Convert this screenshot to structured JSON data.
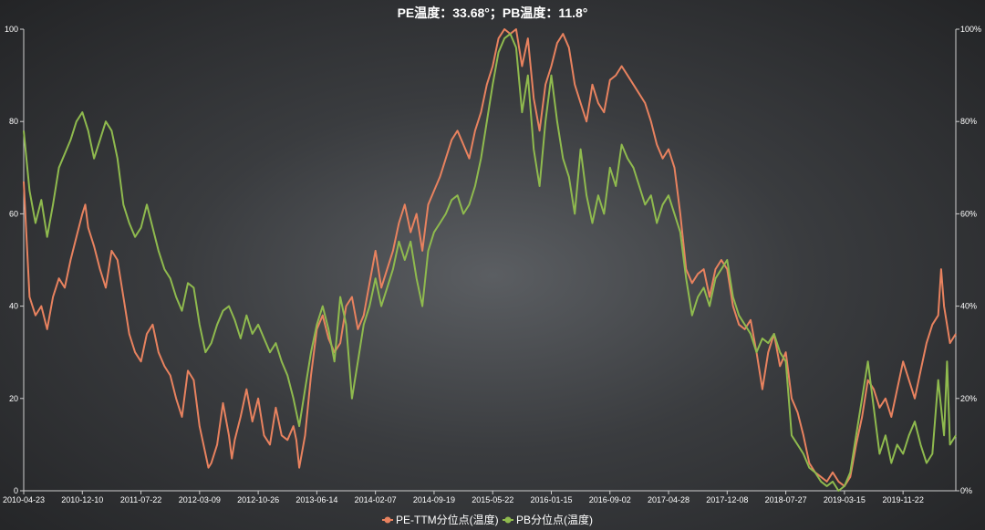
{
  "chart_data": {
    "type": "line",
    "title": "PE温度：33.68°；PB温度：11.8°",
    "x_ticks": [
      "2010-04-23",
      "2010-12-10",
      "2011-07-22",
      "2012-03-09",
      "2012-10-26",
      "2013-06-14",
      "2014-02-07",
      "2014-09-19",
      "2015-05-22",
      "2016-01-15",
      "2016-09-02",
      "2017-04-28",
      "2017-12-08",
      "2018-07-27",
      "2019-03-15",
      "2019-11-22"
    ],
    "y_left": {
      "min": 0,
      "max": 100,
      "ticks": [
        "0",
        "20",
        "40",
        "60",
        "80",
        "100"
      ]
    },
    "y_right": {
      "min": 0,
      "max": 100,
      "ticks": [
        "0%",
        "20%",
        "40%",
        "60%",
        "80%",
        "100%"
      ]
    },
    "legend_position": "bottom-center",
    "x_range": [
      0,
      15.9
    ],
    "series": [
      {
        "name": "PE-TTM分位点(温度)",
        "color": "#e8825f",
        "points": [
          [
            0,
            67
          ],
          [
            0.1,
            42
          ],
          [
            0.2,
            38
          ],
          [
            0.3,
            40
          ],
          [
            0.4,
            35
          ],
          [
            0.5,
            42
          ],
          [
            0.6,
            46
          ],
          [
            0.7,
            44
          ],
          [
            0.8,
            50
          ],
          [
            0.9,
            55
          ],
          [
            1.0,
            60
          ],
          [
            1.05,
            62
          ],
          [
            1.1,
            57
          ],
          [
            1.2,
            53
          ],
          [
            1.3,
            48
          ],
          [
            1.4,
            44
          ],
          [
            1.5,
            52
          ],
          [
            1.6,
            50
          ],
          [
            1.7,
            42
          ],
          [
            1.8,
            34
          ],
          [
            1.9,
            30
          ],
          [
            2.0,
            28
          ],
          [
            2.1,
            34
          ],
          [
            2.2,
            36
          ],
          [
            2.3,
            30
          ],
          [
            2.4,
            27
          ],
          [
            2.5,
            25
          ],
          [
            2.6,
            20
          ],
          [
            2.7,
            16
          ],
          [
            2.8,
            26
          ],
          [
            2.9,
            24
          ],
          [
            3.0,
            14
          ],
          [
            3.1,
            8
          ],
          [
            3.15,
            5
          ],
          [
            3.2,
            6
          ],
          [
            3.3,
            10
          ],
          [
            3.4,
            19
          ],
          [
            3.5,
            12
          ],
          [
            3.55,
            7
          ],
          [
            3.6,
            11
          ],
          [
            3.7,
            16
          ],
          [
            3.8,
            22
          ],
          [
            3.9,
            15
          ],
          [
            4.0,
            20
          ],
          [
            4.1,
            12
          ],
          [
            4.2,
            10
          ],
          [
            4.3,
            18
          ],
          [
            4.4,
            12
          ],
          [
            4.5,
            11
          ],
          [
            4.6,
            14
          ],
          [
            4.65,
            11
          ],
          [
            4.7,
            5
          ],
          [
            4.8,
            12
          ],
          [
            4.9,
            25
          ],
          [
            5.0,
            35
          ],
          [
            5.1,
            38
          ],
          [
            5.2,
            33
          ],
          [
            5.3,
            30
          ],
          [
            5.4,
            32
          ],
          [
            5.5,
            40
          ],
          [
            5.6,
            42
          ],
          [
            5.7,
            35
          ],
          [
            5.8,
            38
          ],
          [
            5.9,
            45
          ],
          [
            6.0,
            52
          ],
          [
            6.1,
            44
          ],
          [
            6.2,
            48
          ],
          [
            6.3,
            52
          ],
          [
            6.4,
            58
          ],
          [
            6.5,
            62
          ],
          [
            6.6,
            56
          ],
          [
            6.7,
            60
          ],
          [
            6.8,
            52
          ],
          [
            6.9,
            62
          ],
          [
            7.0,
            65
          ],
          [
            7.1,
            68
          ],
          [
            7.2,
            72
          ],
          [
            7.3,
            76
          ],
          [
            7.4,
            78
          ],
          [
            7.5,
            75
          ],
          [
            7.6,
            72
          ],
          [
            7.7,
            78
          ],
          [
            7.8,
            82
          ],
          [
            7.9,
            88
          ],
          [
            8.0,
            92
          ],
          [
            8.1,
            98
          ],
          [
            8.2,
            100
          ],
          [
            8.3,
            99
          ],
          [
            8.4,
            100
          ],
          [
            8.5,
            92
          ],
          [
            8.6,
            98
          ],
          [
            8.7,
            85
          ],
          [
            8.8,
            78
          ],
          [
            8.9,
            88
          ],
          [
            9.0,
            92
          ],
          [
            9.1,
            97
          ],
          [
            9.2,
            99
          ],
          [
            9.3,
            96
          ],
          [
            9.4,
            88
          ],
          [
            9.5,
            84
          ],
          [
            9.6,
            80
          ],
          [
            9.7,
            88
          ],
          [
            9.8,
            84
          ],
          [
            9.9,
            82
          ],
          [
            10.0,
            89
          ],
          [
            10.1,
            90
          ],
          [
            10.2,
            92
          ],
          [
            10.3,
            90
          ],
          [
            10.4,
            88
          ],
          [
            10.5,
            86
          ],
          [
            10.6,
            84
          ],
          [
            10.7,
            80
          ],
          [
            10.8,
            75
          ],
          [
            10.9,
            72
          ],
          [
            11.0,
            74
          ],
          [
            11.1,
            70
          ],
          [
            11.2,
            60
          ],
          [
            11.3,
            48
          ],
          [
            11.4,
            45
          ],
          [
            11.5,
            47
          ],
          [
            11.6,
            48
          ],
          [
            11.7,
            42
          ],
          [
            11.8,
            48
          ],
          [
            11.9,
            50
          ],
          [
            12.0,
            48
          ],
          [
            12.1,
            40
          ],
          [
            12.2,
            36
          ],
          [
            12.3,
            35
          ],
          [
            12.4,
            37
          ],
          [
            12.5,
            30
          ],
          [
            12.6,
            22
          ],
          [
            12.7,
            30
          ],
          [
            12.8,
            34
          ],
          [
            12.9,
            27
          ],
          [
            13.0,
            30
          ],
          [
            13.1,
            20
          ],
          [
            13.2,
            17
          ],
          [
            13.3,
            12
          ],
          [
            13.4,
            6
          ],
          [
            13.5,
            4
          ],
          [
            13.6,
            3
          ],
          [
            13.7,
            2
          ],
          [
            13.8,
            4
          ],
          [
            13.9,
            2
          ],
          [
            14.0,
            1
          ],
          [
            14.1,
            3
          ],
          [
            14.2,
            10
          ],
          [
            14.3,
            16
          ],
          [
            14.4,
            24
          ],
          [
            14.5,
            22
          ],
          [
            14.6,
            18
          ],
          [
            14.7,
            20
          ],
          [
            14.8,
            16
          ],
          [
            14.9,
            22
          ],
          [
            15.0,
            28
          ],
          [
            15.1,
            24
          ],
          [
            15.2,
            20
          ],
          [
            15.3,
            26
          ],
          [
            15.4,
            32
          ],
          [
            15.5,
            36
          ],
          [
            15.6,
            38
          ],
          [
            15.65,
            48
          ],
          [
            15.7,
            40
          ],
          [
            15.8,
            32
          ],
          [
            15.9,
            34
          ]
        ]
      },
      {
        "name": "PB分位点(温度)",
        "color": "#8fba4e",
        "points": [
          [
            0,
            78
          ],
          [
            0.1,
            65
          ],
          [
            0.2,
            58
          ],
          [
            0.3,
            63
          ],
          [
            0.4,
            55
          ],
          [
            0.5,
            62
          ],
          [
            0.6,
            70
          ],
          [
            0.7,
            73
          ],
          [
            0.8,
            76
          ],
          [
            0.9,
            80
          ],
          [
            1.0,
            82
          ],
          [
            1.1,
            78
          ],
          [
            1.2,
            72
          ],
          [
            1.3,
            76
          ],
          [
            1.4,
            80
          ],
          [
            1.5,
            78
          ],
          [
            1.6,
            72
          ],
          [
            1.7,
            62
          ],
          [
            1.8,
            58
          ],
          [
            1.9,
            55
          ],
          [
            2.0,
            57
          ],
          [
            2.1,
            62
          ],
          [
            2.2,
            57
          ],
          [
            2.3,
            52
          ],
          [
            2.4,
            48
          ],
          [
            2.5,
            46
          ],
          [
            2.6,
            42
          ],
          [
            2.7,
            39
          ],
          [
            2.8,
            45
          ],
          [
            2.9,
            44
          ],
          [
            3.0,
            36
          ],
          [
            3.1,
            30
          ],
          [
            3.2,
            32
          ],
          [
            3.3,
            36
          ],
          [
            3.4,
            39
          ],
          [
            3.5,
            40
          ],
          [
            3.6,
            37
          ],
          [
            3.7,
            33
          ],
          [
            3.8,
            38
          ],
          [
            3.9,
            34
          ],
          [
            4.0,
            36
          ],
          [
            4.1,
            33
          ],
          [
            4.2,
            30
          ],
          [
            4.3,
            32
          ],
          [
            4.4,
            28
          ],
          [
            4.5,
            25
          ],
          [
            4.6,
            20
          ],
          [
            4.7,
            14
          ],
          [
            4.8,
            22
          ],
          [
            4.9,
            30
          ],
          [
            5.0,
            36
          ],
          [
            5.1,
            40
          ],
          [
            5.2,
            35
          ],
          [
            5.3,
            28
          ],
          [
            5.4,
            42
          ],
          [
            5.5,
            36
          ],
          [
            5.6,
            20
          ],
          [
            5.7,
            28
          ],
          [
            5.8,
            36
          ],
          [
            5.9,
            40
          ],
          [
            6.0,
            46
          ],
          [
            6.1,
            40
          ],
          [
            6.2,
            44
          ],
          [
            6.3,
            48
          ],
          [
            6.4,
            54
          ],
          [
            6.5,
            50
          ],
          [
            6.6,
            54
          ],
          [
            6.7,
            46
          ],
          [
            6.8,
            40
          ],
          [
            6.9,
            52
          ],
          [
            7.0,
            56
          ],
          [
            7.1,
            58
          ],
          [
            7.2,
            60
          ],
          [
            7.3,
            63
          ],
          [
            7.4,
            64
          ],
          [
            7.5,
            60
          ],
          [
            7.6,
            62
          ],
          [
            7.7,
            66
          ],
          [
            7.8,
            72
          ],
          [
            7.9,
            80
          ],
          [
            8.0,
            88
          ],
          [
            8.1,
            95
          ],
          [
            8.2,
            98
          ],
          [
            8.3,
            99
          ],
          [
            8.4,
            96
          ],
          [
            8.5,
            82
          ],
          [
            8.6,
            90
          ],
          [
            8.7,
            74
          ],
          [
            8.8,
            66
          ],
          [
            8.9,
            80
          ],
          [
            9.0,
            90
          ],
          [
            9.1,
            80
          ],
          [
            9.2,
            72
          ],
          [
            9.3,
            68
          ],
          [
            9.4,
            60
          ],
          [
            9.5,
            74
          ],
          [
            9.6,
            64
          ],
          [
            9.7,
            58
          ],
          [
            9.8,
            64
          ],
          [
            9.9,
            60
          ],
          [
            10.0,
            70
          ],
          [
            10.1,
            66
          ],
          [
            10.2,
            75
          ],
          [
            10.3,
            72
          ],
          [
            10.4,
            70
          ],
          [
            10.5,
            66
          ],
          [
            10.6,
            62
          ],
          [
            10.7,
            64
          ],
          [
            10.8,
            58
          ],
          [
            10.9,
            62
          ],
          [
            11.0,
            64
          ],
          [
            11.1,
            60
          ],
          [
            11.2,
            56
          ],
          [
            11.3,
            46
          ],
          [
            11.4,
            38
          ],
          [
            11.5,
            42
          ],
          [
            11.6,
            44
          ],
          [
            11.7,
            40
          ],
          [
            11.8,
            46
          ],
          [
            11.9,
            48
          ],
          [
            12.0,
            50
          ],
          [
            12.1,
            42
          ],
          [
            12.2,
            38
          ],
          [
            12.3,
            36
          ],
          [
            12.4,
            34
          ],
          [
            12.5,
            30
          ],
          [
            12.6,
            33
          ],
          [
            12.7,
            32
          ],
          [
            12.8,
            34
          ],
          [
            12.9,
            30
          ],
          [
            13.0,
            28
          ],
          [
            13.1,
            12
          ],
          [
            13.2,
            10
          ],
          [
            13.3,
            8
          ],
          [
            13.4,
            5
          ],
          [
            13.5,
            4
          ],
          [
            13.6,
            2
          ],
          [
            13.7,
            1
          ],
          [
            13.8,
            2
          ],
          [
            13.9,
            0
          ],
          [
            14.0,
            1
          ],
          [
            14.1,
            4
          ],
          [
            14.2,
            12
          ],
          [
            14.3,
            20
          ],
          [
            14.4,
            28
          ],
          [
            14.5,
            18
          ],
          [
            14.6,
            8
          ],
          [
            14.7,
            12
          ],
          [
            14.8,
            6
          ],
          [
            14.9,
            10
          ],
          [
            15.0,
            8
          ],
          [
            15.1,
            12
          ],
          [
            15.2,
            15
          ],
          [
            15.3,
            10
          ],
          [
            15.4,
            6
          ],
          [
            15.5,
            8
          ],
          [
            15.6,
            24
          ],
          [
            15.7,
            12
          ],
          [
            15.75,
            28
          ],
          [
            15.8,
            10
          ],
          [
            15.9,
            12
          ]
        ]
      }
    ]
  }
}
